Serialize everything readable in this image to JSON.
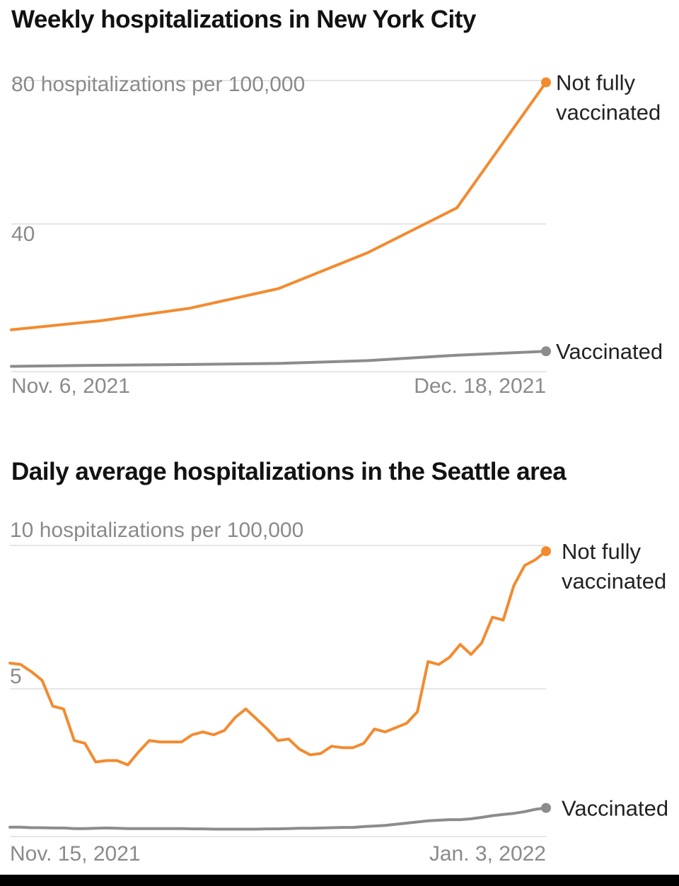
{
  "chart_data": [
    {
      "type": "line",
      "title": "Weekly hospitalizations in New York City",
      "ylim": [
        0,
        80
      ],
      "y_ticks": [
        {
          "value": 80,
          "label": "80 hospitalizations per 100,000"
        },
        {
          "value": 40,
          "label": "40"
        }
      ],
      "x_labels": [
        "Nov. 6, 2021",
        "Dec. 18, 2021"
      ],
      "grid": true,
      "series": [
        {
          "name": "Not fully vaccinated",
          "label_lines": [
            "Not fully",
            "vaccinated"
          ],
          "color": "#f28b30",
          "x": [
            "2021-11-06",
            "2021-11-13",
            "2021-11-20",
            "2021-11-27",
            "2021-12-04",
            "2021-12-11",
            "2021-12-18"
          ],
          "values": [
            10.5,
            13,
            16.5,
            22,
            32,
            44.5,
            79.5
          ]
        },
        {
          "name": "Vaccinated",
          "label_lines": [
            "Vaccinated"
          ],
          "color": "#8c8c8c",
          "x": [
            "2021-11-06",
            "2021-11-13",
            "2021-11-20",
            "2021-11-27",
            "2021-12-04",
            "2021-12-11",
            "2021-12-18"
          ],
          "values": [
            0.3,
            0.6,
            0.8,
            1.1,
            1.9,
            3.4,
            4.5
          ]
        }
      ]
    },
    {
      "type": "line",
      "title": "Daily average hospitalizations in the Seattle area",
      "ylim": [
        0,
        10
      ],
      "y_ticks": [
        {
          "value": 10,
          "label": "10 hospitalizations per 100,000"
        },
        {
          "value": 5,
          "label": "5"
        }
      ],
      "x_labels": [
        "Nov. 15, 2021",
        "Jan. 3, 2022"
      ],
      "grid": true,
      "series": [
        {
          "name": "Not fully vaccinated",
          "label_lines": [
            "Not fully",
            "vaccinated"
          ],
          "color": "#f28b30",
          "x_start": "2021-11-15",
          "x_end": "2022-01-03",
          "values": [
            5.9,
            5.85,
            5.6,
            5.3,
            4.4,
            4.3,
            3.2,
            3.1,
            2.45,
            2.5,
            2.5,
            2.35,
            2.8,
            3.2,
            3.15,
            3.15,
            3.15,
            3.4,
            3.5,
            3.4,
            3.55,
            4.0,
            4.3,
            3.95,
            3.6,
            3.2,
            3.25,
            2.9,
            2.7,
            2.75,
            3.0,
            2.95,
            2.95,
            3.1,
            3.6,
            3.5,
            3.65,
            3.8,
            4.2,
            5.95,
            5.85,
            6.1,
            6.55,
            6.2,
            6.6,
            7.5,
            7.4,
            8.6,
            9.3,
            9.5,
            9.8
          ]
        },
        {
          "name": "Vaccinated",
          "label_lines": [
            "Vaccinated"
          ],
          "color": "#8c8c8c",
          "x_start": "2021-11-15",
          "x_end": "2022-01-03",
          "values": [
            0.18,
            0.18,
            0.16,
            0.16,
            0.15,
            0.15,
            0.13,
            0.13,
            0.14,
            0.15,
            0.14,
            0.13,
            0.13,
            0.13,
            0.13,
            0.13,
            0.13,
            0.12,
            0.12,
            0.11,
            0.11,
            0.11,
            0.11,
            0.11,
            0.12,
            0.12,
            0.13,
            0.14,
            0.14,
            0.15,
            0.16,
            0.17,
            0.17,
            0.2,
            0.22,
            0.24,
            0.28,
            0.32,
            0.36,
            0.4,
            0.42,
            0.44,
            0.44,
            0.47,
            0.52,
            0.58,
            0.62,
            0.66,
            0.72,
            0.8,
            0.85
          ]
        }
      ]
    }
  ]
}
